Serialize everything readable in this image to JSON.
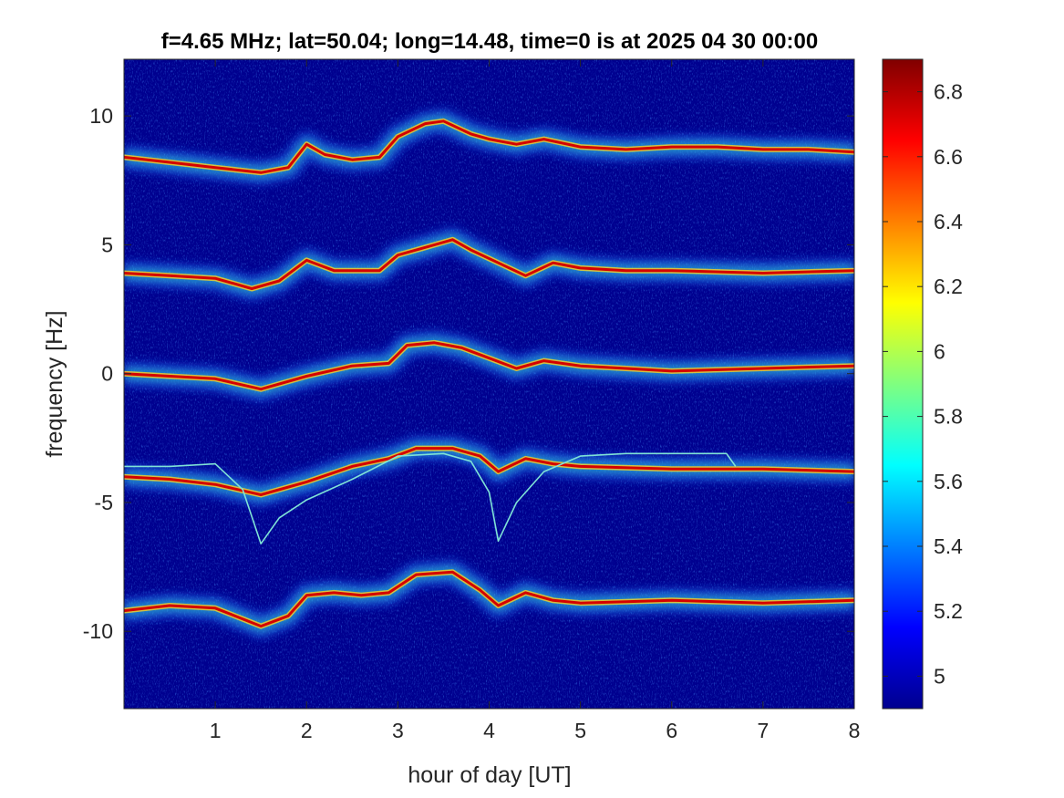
{
  "chart_data": {
    "type": "heatmap",
    "title": "f=4.65 MHz;  lat=50.04; long=14.48, time=0 is at 2025 04 30 00:00",
    "xlabel": "hour of day [UT]",
    "ylabel": "frequency [Hz]",
    "xlim": [
      0,
      8
    ],
    "ylim": [
      -13,
      12.2
    ],
    "x_ticks": [
      1,
      2,
      3,
      4,
      5,
      6,
      7,
      8
    ],
    "y_ticks": [
      -10,
      -5,
      0,
      5,
      10
    ],
    "colorbar": {
      "colormap": "jet",
      "clim": [
        4.9,
        6.9
      ],
      "ticks": [
        "5",
        "5.2",
        "5.4",
        "5.6",
        "5.8",
        "6",
        "6.2",
        "6.4",
        "6.6",
        "6.8"
      ]
    },
    "background_color": "#00008f",
    "traces": [
      {
        "center_freq": 8.3,
        "points": [
          [
            0,
            8.4
          ],
          [
            0.5,
            8.2
          ],
          [
            1,
            8.0
          ],
          [
            1.5,
            7.8
          ],
          [
            1.8,
            8.0
          ],
          [
            2,
            8.9
          ],
          [
            2.2,
            8.5
          ],
          [
            2.5,
            8.3
          ],
          [
            2.8,
            8.4
          ],
          [
            3.0,
            9.2
          ],
          [
            3.3,
            9.7
          ],
          [
            3.5,
            9.8
          ],
          [
            3.8,
            9.3
          ],
          [
            4.0,
            9.1
          ],
          [
            4.3,
            8.9
          ],
          [
            4.6,
            9.1
          ],
          [
            5.0,
            8.8
          ],
          [
            5.5,
            8.7
          ],
          [
            6.0,
            8.8
          ],
          [
            6.5,
            8.8
          ],
          [
            7.0,
            8.7
          ],
          [
            7.5,
            8.7
          ],
          [
            8,
            8.6
          ]
        ]
      },
      {
        "center_freq": 4.0,
        "points": [
          [
            0,
            3.9
          ],
          [
            0.5,
            3.8
          ],
          [
            1,
            3.7
          ],
          [
            1.4,
            3.3
          ],
          [
            1.7,
            3.6
          ],
          [
            2,
            4.4
          ],
          [
            2.3,
            4.0
          ],
          [
            2.6,
            4.0
          ],
          [
            2.8,
            4.0
          ],
          [
            3.0,
            4.6
          ],
          [
            3.3,
            4.9
          ],
          [
            3.6,
            5.2
          ],
          [
            3.8,
            4.8
          ],
          [
            4.1,
            4.3
          ],
          [
            4.4,
            3.8
          ],
          [
            4.7,
            4.3
          ],
          [
            5.0,
            4.1
          ],
          [
            5.5,
            4.0
          ],
          [
            6,
            4.0
          ],
          [
            7,
            3.9
          ],
          [
            8,
            4.0
          ]
        ]
      },
      {
        "center_freq": 0.0,
        "points": [
          [
            0,
            0.0
          ],
          [
            0.5,
            -0.1
          ],
          [
            1,
            -0.2
          ],
          [
            1.5,
            -0.6
          ],
          [
            2,
            -0.1
          ],
          [
            2.5,
            0.3
          ],
          [
            2.9,
            0.4
          ],
          [
            3.1,
            1.1
          ],
          [
            3.4,
            1.2
          ],
          [
            3.7,
            1.0
          ],
          [
            4.0,
            0.6
          ],
          [
            4.3,
            0.2
          ],
          [
            4.6,
            0.5
          ],
          [
            5,
            0.3
          ],
          [
            5.5,
            0.2
          ],
          [
            6,
            0.1
          ],
          [
            7,
            0.2
          ],
          [
            8,
            0.3
          ]
        ]
      },
      {
        "center_freq": -3.9,
        "points": [
          [
            0,
            -4.0
          ],
          [
            0.5,
            -4.1
          ],
          [
            1,
            -4.3
          ],
          [
            1.5,
            -4.7
          ],
          [
            2,
            -4.2
          ],
          [
            2.5,
            -3.6
          ],
          [
            2.9,
            -3.3
          ],
          [
            3.2,
            -2.9
          ],
          [
            3.6,
            -2.9
          ],
          [
            3.9,
            -3.2
          ],
          [
            4.1,
            -3.8
          ],
          [
            4.4,
            -3.3
          ],
          [
            4.7,
            -3.5
          ],
          [
            5,
            -3.6
          ],
          [
            6,
            -3.7
          ],
          [
            7,
            -3.7
          ],
          [
            8,
            -3.8
          ]
        ]
      },
      {
        "center_freq": -9.2,
        "points": [
          [
            0,
            -9.2
          ],
          [
            0.5,
            -9.0
          ],
          [
            1,
            -9.1
          ],
          [
            1.5,
            -9.8
          ],
          [
            1.8,
            -9.4
          ],
          [
            2,
            -8.6
          ],
          [
            2.3,
            -8.5
          ],
          [
            2.6,
            -8.6
          ],
          [
            2.9,
            -8.5
          ],
          [
            3.2,
            -7.8
          ],
          [
            3.6,
            -7.7
          ],
          [
            3.9,
            -8.4
          ],
          [
            4.1,
            -9.0
          ],
          [
            4.4,
            -8.5
          ],
          [
            4.7,
            -8.8
          ],
          [
            5,
            -8.9
          ],
          [
            6,
            -8.8
          ],
          [
            7,
            -8.9
          ],
          [
            8,
            -8.8
          ]
        ]
      }
    ],
    "thin_traces": [
      {
        "points": [
          [
            0,
            -3.6
          ],
          [
            0.5,
            -3.6
          ],
          [
            1,
            -3.5
          ],
          [
            1.3,
            -4.5
          ],
          [
            1.5,
            -6.6
          ],
          [
            1.7,
            -5.6
          ],
          [
            2,
            -4.9
          ],
          [
            2.5,
            -4.1
          ],
          [
            3,
            -3.2
          ],
          [
            3.5,
            -3.1
          ],
          [
            3.8,
            -3.4
          ],
          [
            4.0,
            -4.6
          ],
          [
            4.1,
            -6.5
          ],
          [
            4.3,
            -5.0
          ],
          [
            4.6,
            -3.8
          ],
          [
            5,
            -3.2
          ],
          [
            5.5,
            -3.1
          ],
          [
            6,
            -3.1
          ],
          [
            6.6,
            -3.1
          ],
          [
            6.7,
            -3.6
          ]
        ]
      }
    ]
  }
}
